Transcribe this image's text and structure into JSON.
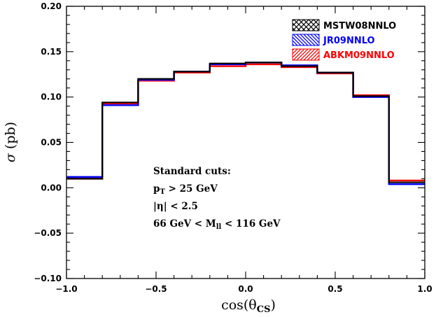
{
  "chart_data": {
    "type": "step-histogram",
    "title": "",
    "xlabel": "cos(θ",
    "xlabel_sub": "CS",
    "xlabel_close": ")",
    "ylabel_symbol": "σ",
    "ylabel_unit": "(pb)",
    "xlim": [
      -1.0,
      1.0
    ],
    "ylim": [
      -0.1,
      0.2
    ],
    "x_ticks": [
      -1.0,
      -0.5,
      0.0,
      0.5,
      1.0
    ],
    "x_tick_labels": [
      "−1.0",
      "−0.5",
      "0.0",
      "0.5",
      "1.0"
    ],
    "y_ticks": [
      -0.1,
      -0.05,
      0.0,
      0.05,
      0.1,
      0.15,
      0.2
    ],
    "y_tick_labels": [
      "−0.10",
      "−0.05",
      "0.00",
      "0.05",
      "0.10",
      "0.15",
      "0.20"
    ],
    "bin_edges": [
      -1.0,
      -0.8,
      -0.6,
      -0.4,
      -0.2,
      0.0,
      0.2,
      0.4,
      0.6,
      0.8,
      1.0
    ],
    "series": [
      {
        "name": "MSTW08NNLO",
        "color": "#000000",
        "hatch": "cross",
        "values": [
          0.01,
          0.094,
          0.12,
          0.128,
          0.137,
          0.138,
          0.134,
          0.127,
          0.101,
          0.006
        ]
      },
      {
        "name": "JR09NNLO",
        "color": "#0000ff",
        "hatch": "backslash",
        "values": [
          0.012,
          0.091,
          0.119,
          0.128,
          0.136,
          0.138,
          0.135,
          0.127,
          0.1,
          0.004
        ]
      },
      {
        "name": "ABKM09NNLO",
        "color": "#ff0000",
        "hatch": "slash",
        "values": [
          0.01,
          0.093,
          0.118,
          0.127,
          0.134,
          0.136,
          0.133,
          0.126,
          0.102,
          0.008
        ]
      }
    ],
    "annotations": {
      "line1": "Standard cuts:",
      "line2_a": "p",
      "line2_sub": "T",
      "line2_b": " > 25 GeV",
      "line3_a": "|η| < 2.5",
      "line4_a": "66 GeV < M",
      "line4_sub": "ll",
      "line4_b": " < 116 GeV"
    },
    "legend_position": "top-right"
  }
}
